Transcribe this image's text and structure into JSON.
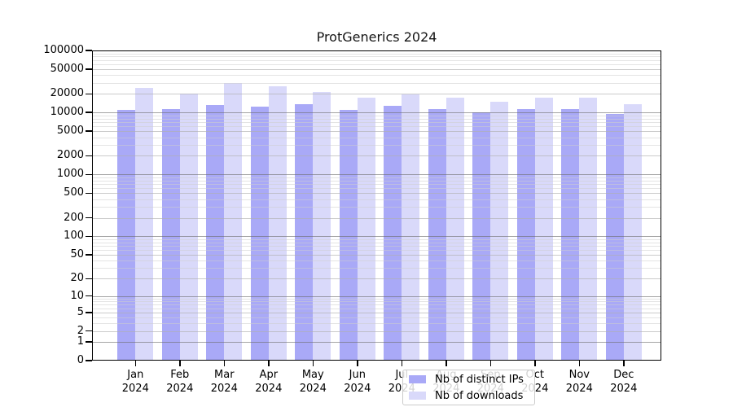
{
  "title": "ProtGenerics 2024",
  "colors": {
    "distinct_ips": "#a9a9f7",
    "downloads": "#d9d9fa",
    "axis": "#000000",
    "background": "#ffffff",
    "grid_decade": "#6e6e6e",
    "grid_labeled": "#afafaf",
    "grid_minor": "#cdcdcd"
  },
  "legend": {
    "position": "lower center",
    "items": [
      {
        "label": "Nb of distinct IPs",
        "color_key": "distinct_ips"
      },
      {
        "label": "Nb of downloads",
        "color_key": "downloads"
      }
    ]
  },
  "x_axis": {
    "months": [
      "Jan",
      "Feb",
      "Mar",
      "Apr",
      "May",
      "Jun",
      "Jul",
      "Aug",
      "Sep",
      "Oct",
      "Nov",
      "Dec"
    ],
    "year": "2024"
  },
  "chart_data": {
    "type": "bar",
    "title": "ProtGenerics 2024",
    "categories": [
      "Jan 2024",
      "Feb 2024",
      "Mar 2024",
      "Apr 2024",
      "May 2024",
      "Jun 2024",
      "Jul 2024",
      "Aug 2024",
      "Sep 2024",
      "Oct 2024",
      "Nov 2024",
      "Dec 2024"
    ],
    "series": [
      {
        "name": "Nb of distinct IPs",
        "values": [
          10900,
          11300,
          13300,
          12400,
          13600,
          11100,
          13000,
          11500,
          10000,
          11200,
          11500,
          9600
        ]
      },
      {
        "name": "Nb of downloads",
        "values": [
          24700,
          20000,
          30000,
          26600,
          21700,
          17200,
          19800,
          17200,
          14800,
          17200,
          17600,
          13600
        ]
      }
    ],
    "xlabel": "",
    "ylabel": "",
    "yscale": "log1p",
    "ylim": [
      0,
      100000
    ],
    "yticks": [
      0,
      1,
      2,
      5,
      10,
      20,
      50,
      100,
      200,
      500,
      1000,
      2000,
      5000,
      10000,
      20000,
      50000,
      100000
    ],
    "grid": true,
    "legend_position": "lower center"
  }
}
